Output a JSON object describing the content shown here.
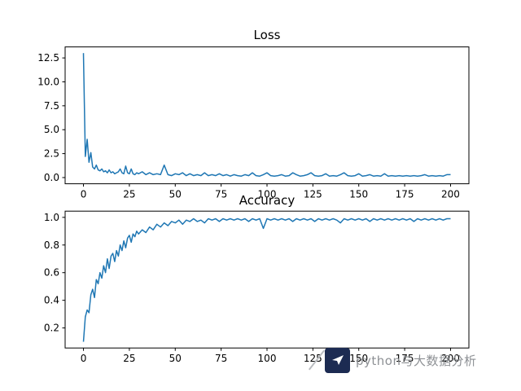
{
  "figure": {
    "background": "#ffffff",
    "watermark": {
      "text": "python与大数据分析",
      "text_color": "#8d9094",
      "logo_color": "#1c2b52"
    }
  },
  "chart_data": [
    {
      "type": "line",
      "title": "Loss",
      "color": "#1f77b4",
      "grid": false,
      "legend": "none",
      "xlim": [
        -10,
        210
      ],
      "ylim": [
        -0.65,
        13.65
      ],
      "xticks": [
        0,
        25,
        50,
        75,
        100,
        125,
        150,
        175,
        200
      ],
      "xtick_labels": [
        "0",
        "25",
        "50",
        "75",
        "100",
        "125",
        "150",
        "175",
        "200"
      ],
      "yticks": [
        0.0,
        2.5,
        5.0,
        7.5,
        10.0,
        12.5
      ],
      "ytick_labels": [
        "0.0",
        "2.5",
        "5.0",
        "7.5",
        "10.0",
        "12.5"
      ],
      "x": [
        0,
        1,
        2,
        3,
        4,
        5,
        6,
        7,
        8,
        9,
        10,
        11,
        12,
        13,
        14,
        15,
        16,
        17,
        18,
        19,
        20,
        21,
        22,
        23,
        24,
        25,
        26,
        27,
        28,
        29,
        30,
        32,
        34,
        36,
        38,
        40,
        42,
        44,
        46,
        48,
        50,
        52,
        54,
        56,
        58,
        60,
        62,
        64,
        66,
        68,
        70,
        72,
        74,
        76,
        78,
        80,
        82,
        84,
        86,
        88,
        90,
        92,
        94,
        96,
        98,
        100,
        102,
        104,
        106,
        108,
        110,
        112,
        114,
        116,
        118,
        120,
        122,
        124,
        126,
        128,
        130,
        132,
        134,
        136,
        138,
        140,
        142,
        144,
        146,
        148,
        150,
        152,
        154,
        156,
        158,
        160,
        162,
        164,
        166,
        168,
        170,
        172,
        174,
        176,
        178,
        180,
        182,
        184,
        186,
        188,
        190,
        192,
        194,
        196,
        198,
        200
      ],
      "y": [
        13.0,
        2.2,
        4.0,
        1.6,
        2.6,
        1.1,
        0.9,
        1.3,
        0.8,
        0.7,
        0.9,
        0.6,
        0.7,
        0.5,
        0.8,
        0.5,
        0.6,
        0.4,
        0.5,
        0.6,
        0.9,
        0.5,
        0.4,
        1.2,
        0.5,
        0.4,
        0.9,
        0.4,
        0.3,
        0.5,
        0.4,
        0.6,
        0.3,
        0.5,
        0.3,
        0.4,
        0.3,
        1.3,
        0.3,
        0.2,
        0.4,
        0.3,
        0.5,
        0.2,
        0.4,
        0.2,
        0.3,
        0.2,
        0.5,
        0.2,
        0.3,
        0.2,
        0.4,
        0.2,
        0.3,
        0.15,
        0.3,
        0.2,
        0.15,
        0.3,
        0.2,
        0.5,
        0.2,
        0.15,
        0.3,
        0.5,
        0.2,
        0.15,
        0.2,
        0.3,
        0.15,
        0.2,
        0.5,
        0.3,
        0.15,
        0.2,
        0.3,
        0.5,
        0.2,
        0.15,
        0.2,
        0.4,
        0.15,
        0.2,
        0.15,
        0.3,
        0.5,
        0.2,
        0.15,
        0.2,
        0.4,
        0.15,
        0.2,
        0.3,
        0.15,
        0.2,
        0.15,
        0.4,
        0.15,
        0.2,
        0.15,
        0.2,
        0.15,
        0.2,
        0.15,
        0.2,
        0.15,
        0.2,
        0.3,
        0.15,
        0.2,
        0.15,
        0.2,
        0.15,
        0.3,
        0.3
      ]
    },
    {
      "type": "line",
      "title": "Accuracy",
      "color": "#1f77b4",
      "grid": false,
      "legend": "none",
      "xlim": [
        -10,
        210
      ],
      "ylim": [
        0.055,
        1.045
      ],
      "xticks": [
        0,
        25,
        50,
        75,
        100,
        125,
        150,
        175,
        200
      ],
      "xtick_labels": [
        "0",
        "25",
        "50",
        "75",
        "100",
        "125",
        "150",
        "175",
        "200"
      ],
      "yticks": [
        0.2,
        0.4,
        0.6,
        0.8,
        1.0
      ],
      "ytick_labels": [
        "0.2",
        "0.4",
        "0.6",
        "0.8",
        "1.0"
      ],
      "x": [
        0,
        1,
        2,
        3,
        4,
        5,
        6,
        7,
        8,
        9,
        10,
        11,
        12,
        13,
        14,
        15,
        16,
        17,
        18,
        19,
        20,
        21,
        22,
        23,
        24,
        25,
        26,
        27,
        28,
        29,
        30,
        32,
        34,
        36,
        38,
        40,
        42,
        44,
        46,
        48,
        50,
        52,
        54,
        56,
        58,
        60,
        62,
        64,
        66,
        68,
        70,
        72,
        74,
        76,
        78,
        80,
        82,
        84,
        86,
        88,
        90,
        92,
        94,
        96,
        98,
        100,
        102,
        104,
        106,
        108,
        110,
        112,
        114,
        116,
        118,
        120,
        122,
        124,
        126,
        128,
        130,
        132,
        134,
        136,
        138,
        140,
        142,
        144,
        146,
        148,
        150,
        152,
        154,
        156,
        158,
        160,
        162,
        164,
        166,
        168,
        170,
        172,
        174,
        176,
        178,
        180,
        182,
        184,
        186,
        188,
        190,
        192,
        194,
        196,
        198,
        200
      ],
      "y": [
        0.1,
        0.28,
        0.33,
        0.31,
        0.44,
        0.48,
        0.42,
        0.55,
        0.52,
        0.6,
        0.56,
        0.65,
        0.6,
        0.7,
        0.63,
        0.72,
        0.74,
        0.68,
        0.76,
        0.72,
        0.8,
        0.76,
        0.83,
        0.78,
        0.85,
        0.87,
        0.82,
        0.88,
        0.86,
        0.9,
        0.88,
        0.91,
        0.89,
        0.93,
        0.91,
        0.95,
        0.93,
        0.96,
        0.94,
        0.97,
        0.96,
        0.98,
        0.95,
        0.98,
        0.97,
        0.99,
        0.97,
        0.98,
        0.96,
        0.99,
        0.98,
        0.99,
        0.97,
        0.99,
        0.98,
        0.99,
        0.98,
        0.99,
        0.98,
        0.99,
        0.97,
        0.99,
        0.98,
        0.99,
        0.92,
        0.99,
        0.98,
        0.99,
        0.98,
        0.99,
        0.98,
        0.99,
        0.97,
        0.99,
        0.98,
        0.99,
        0.98,
        0.99,
        0.97,
        0.99,
        0.98,
        0.99,
        0.98,
        0.99,
        0.98,
        0.96,
        0.99,
        0.98,
        0.99,
        0.98,
        0.99,
        0.98,
        0.99,
        0.97,
        0.99,
        0.98,
        0.99,
        0.98,
        0.99,
        0.98,
        0.99,
        0.98,
        0.99,
        0.98,
        0.99,
        0.97,
        0.99,
        0.98,
        0.99,
        0.98,
        0.99,
        0.98,
        0.99,
        0.98,
        0.99,
        0.99
      ]
    }
  ]
}
